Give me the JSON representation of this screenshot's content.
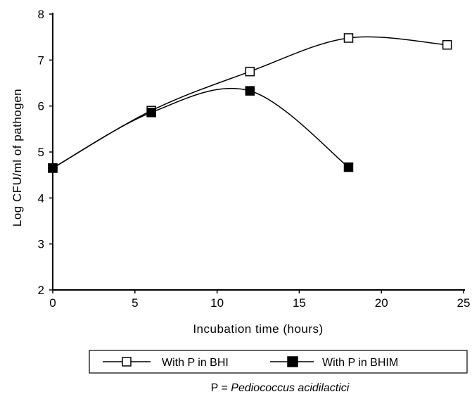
{
  "chart_data": {
    "type": "line",
    "xlabel": "Incubation time (hours)",
    "ylabel": "Log CFU/ml of pathogen",
    "xlim": [
      0,
      25
    ],
    "ylim": [
      2,
      8
    ],
    "xticks": [
      "0",
      "5",
      "10",
      "15",
      "20",
      "25"
    ],
    "yticks": [
      "2",
      "3",
      "4",
      "5",
      "6",
      "7",
      "8"
    ],
    "grid": false,
    "legend_position": "bottom",
    "series": [
      {
        "name": "With P in BHI",
        "marker": "open-square",
        "x": [
          0,
          6,
          12,
          18,
          24
        ],
        "y": [
          4.65,
          5.9,
          6.75,
          7.48,
          7.33
        ]
      },
      {
        "name": "With P in BHIM",
        "marker": "filled-square",
        "x": [
          0,
          6,
          12,
          18
        ],
        "y": [
          4.65,
          5.86,
          6.33,
          4.67
        ]
      }
    ],
    "note": {
      "prefix": "P = ",
      "italic": "Pediococcus acidilactici"
    }
  }
}
